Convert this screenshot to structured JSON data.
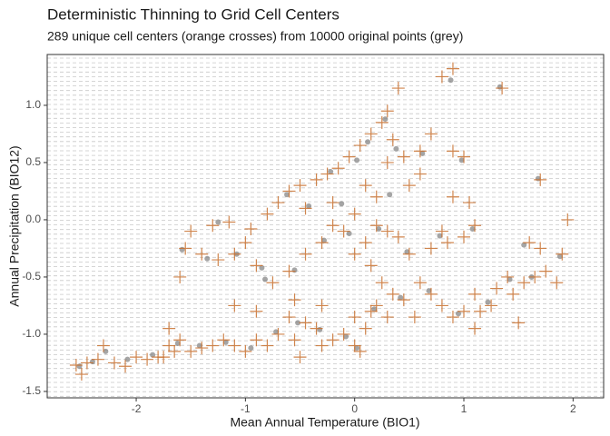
{
  "chart_data": {
    "type": "scatter",
    "title": "Deterministic Thinning to Grid Cell Centers",
    "subtitle": "289 unique cell centers (orange crosses) from 10000 original points (grey)",
    "x_label": "Mean Annual Temperature (BIO1)",
    "y_label": "Annual Precipitation (BIO12)",
    "xlim": [
      -2.815,
      2.28
    ],
    "ylim": [
      -1.556,
      1.444
    ],
    "xticks": [
      -2,
      -1,
      0,
      1,
      2
    ],
    "yticks": [
      -1.5,
      {
        "value": -1,
        "label": "-1.0"
      },
      -0.5,
      {
        "value": 0,
        "label": "0.0"
      },
      0.5,
      {
        "value": 1,
        "label": "1.0"
      }
    ],
    "series": [
      {
        "color": "#7f7f7f",
        "marker": "circle",
        "x": [
          -2.52,
          -2.4,
          -2.28,
          -2.08,
          -1.85,
          -1.62,
          -1.42,
          -1.18,
          -0.95,
          -0.72,
          -0.52,
          -0.32,
          -0.08,
          0.02,
          0.18,
          0.42,
          0.68,
          0.95,
          1.22,
          1.42,
          1.62,
          1.88,
          1.55,
          1.08,
          0.78,
          0.48,
          0.22,
          -0.05,
          -0.28,
          -0.55,
          -0.82,
          -1.08,
          -1.35,
          -1.58,
          -0.62,
          -0.42,
          -0.22,
          0.02,
          0.12,
          0.28,
          0.38,
          0.62,
          0.98,
          1.33,
          1.68,
          0.88,
          -0.85,
          -1.25,
          0.32,
          -0.12
        ],
        "y": [
          -1.28,
          -1.24,
          -1.15,
          -1.22,
          -1.18,
          -1.08,
          -1.1,
          -1.07,
          -1.12,
          -0.98,
          -0.9,
          -0.96,
          -1.02,
          -1.12,
          -0.78,
          -0.68,
          -0.62,
          -0.82,
          -0.72,
          -0.52,
          -0.5,
          -0.32,
          -0.22,
          -0.08,
          -0.14,
          -0.28,
          -0.08,
          -0.12,
          -0.18,
          -0.44,
          -0.52,
          -0.3,
          -0.34,
          -0.26,
          0.22,
          0.12,
          0.42,
          0.52,
          0.68,
          0.88,
          0.62,
          0.58,
          0.52,
          1.16,
          0.36,
          1.22,
          -0.42,
          -0.02,
          0.22,
          0.14
        ]
      },
      {
        "color": "#c8702e",
        "marker": "cross",
        "x": [
          -2.55,
          -2.5,
          -2.45,
          -2.35,
          -2.3,
          -2.2,
          -2.1,
          -2.0,
          -1.9,
          -1.8,
          -1.7,
          -1.6,
          -1.65,
          -1.5,
          -1.4,
          -1.3,
          -1.2,
          -1.1,
          -1.0,
          -0.9,
          -0.8,
          -0.7,
          -0.6,
          -0.55,
          -0.5,
          -0.45,
          -0.35,
          -0.3,
          -0.2,
          -0.1,
          0.0,
          0.05,
          0.1,
          0.15,
          0.2,
          0.3,
          0.35,
          0.45,
          0.6,
          0.7,
          0.8,
          0.9,
          1.0,
          1.1,
          1.15,
          1.25,
          1.3,
          1.4,
          1.45,
          1.55,
          1.65,
          1.75,
          1.85,
          1.9,
          1.7,
          1.95,
          1.6,
          1.1,
          1.0,
          0.85,
          0.8,
          0.7,
          0.5,
          0.4,
          0.3,
          0.2,
          0.1,
          0.0,
          -0.1,
          -0.2,
          -0.3,
          -0.45,
          -0.6,
          -0.75,
          -0.9,
          -1.0,
          -1.1,
          -1.25,
          -1.4,
          -1.5,
          -1.55,
          -1.6,
          -1.3,
          -1.15,
          -0.95,
          -0.8,
          -0.7,
          -0.6,
          -0.5,
          -0.45,
          -0.35,
          -0.25,
          -0.15,
          -0.05,
          0.05,
          0.15,
          0.25,
          0.3,
          0.35,
          0.45,
          0.5,
          0.6,
          0.7,
          0.4,
          0.8,
          0.9,
          1.35,
          0.6,
          0.9,
          1.0,
          0.9,
          1.05,
          1.7,
          0.1,
          -0.2,
          0.0,
          0.2,
          0.3,
          -0.55,
          -0.3,
          0.0,
          0.25,
          0.15,
          0.55,
          1.5,
          1.1,
          -0.9,
          -1.1,
          -1.7,
          -1.75
        ],
        "y": [
          -1.27,
          -1.35,
          -1.25,
          -1.22,
          -1.1,
          -1.25,
          -1.28,
          -1.2,
          -1.22,
          -1.2,
          -1.1,
          -1.05,
          -1.15,
          -1.15,
          -1.12,
          -1.1,
          -1.05,
          -1.1,
          -1.15,
          -1.05,
          -1.1,
          -1.0,
          -0.85,
          -1.05,
          -1.2,
          -0.9,
          -0.95,
          -1.1,
          -1.05,
          -1.0,
          -1.1,
          -1.15,
          -0.95,
          -0.8,
          -0.75,
          -0.85,
          -0.65,
          -0.7,
          -0.55,
          -0.65,
          -0.75,
          -0.85,
          -0.8,
          -0.65,
          -0.8,
          -0.75,
          -0.6,
          -0.5,
          -0.65,
          -0.55,
          -0.5,
          -0.45,
          -0.55,
          -0.3,
          -0.25,
          0.0,
          -0.2,
          -0.05,
          -0.15,
          -0.2,
          -0.1,
          -0.25,
          -0.3,
          -0.15,
          -0.1,
          -0.05,
          -0.2,
          -0.3,
          -0.1,
          -0.05,
          -0.2,
          -0.3,
          -0.45,
          -0.55,
          -0.4,
          -0.2,
          -0.3,
          -0.35,
          -0.3,
          -0.1,
          -0.25,
          -0.5,
          -0.05,
          -0.02,
          -0.08,
          0.05,
          0.15,
          0.25,
          0.3,
          0.1,
          0.35,
          0.4,
          0.45,
          0.55,
          0.65,
          0.75,
          0.85,
          0.95,
          0.7,
          0.55,
          0.3,
          0.4,
          0.75,
          1.15,
          1.25,
          1.32,
          1.15,
          0.6,
          0.6,
          0.55,
          0.2,
          0.15,
          0.35,
          0.3,
          0.15,
          0.05,
          0.2,
          0.5,
          -0.7,
          -0.75,
          -0.85,
          -0.55,
          -0.4,
          -0.85,
          -0.9,
          -0.95,
          -0.8,
          -0.75,
          -0.95,
          -1.2
        ]
      }
    ]
  }
}
